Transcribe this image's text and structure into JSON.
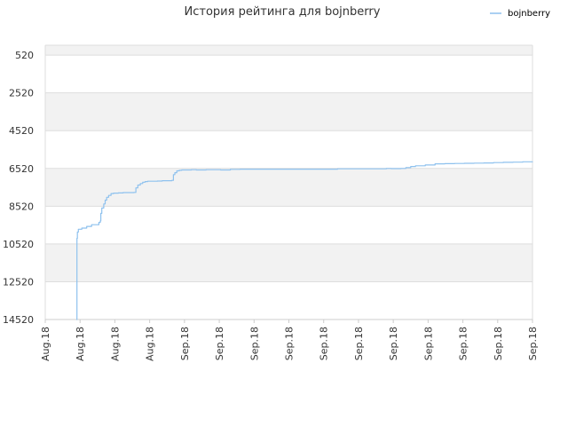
{
  "colors": {
    "line": "#8ec1ee",
    "band": "#f2f2f2",
    "grid": "#dddddd",
    "axis": "#cccccc",
    "text": "#333333"
  },
  "chart_data": {
    "type": "line",
    "title": "История рейтинга для bojnberry",
    "xlabel": "",
    "ylabel": "",
    "y_inverted": true,
    "ylim": [
      14520,
      0
    ],
    "yticks": [
      520,
      2520,
      4520,
      6520,
      8520,
      10520,
      12520,
      14520
    ],
    "xtick_labels": [
      "Aug.18",
      "Aug.18",
      "Aug.18",
      "Aug.18",
      "Sep.18",
      "Sep.18",
      "Sep.18",
      "Sep.18",
      "Sep.18",
      "Sep.18",
      "Sep.18",
      "Sep.18",
      "Sep.18",
      "Sep.18",
      "Sep.18"
    ],
    "grid": true,
    "legend_position": "top-right",
    "series": [
      {
        "name": "bojnberry",
        "color": "#8ec1ee",
        "x": [
          0.064,
          0.065,
          0.066,
          0.068,
          0.075,
          0.085,
          0.095,
          0.11,
          0.113,
          0.114,
          0.116,
          0.12,
          0.123,
          0.126,
          0.13,
          0.135,
          0.14,
          0.145,
          0.15,
          0.16,
          0.17,
          0.182,
          0.186,
          0.19,
          0.195,
          0.2,
          0.205,
          0.21,
          0.22,
          0.23,
          0.24,
          0.25,
          0.26,
          0.263,
          0.266,
          0.27,
          0.275,
          0.28,
          0.29,
          0.3,
          0.31,
          0.33,
          0.36,
          0.38,
          0.4,
          0.45,
          0.5,
          0.55,
          0.6,
          0.65,
          0.7,
          0.71,
          0.72,
          0.73,
          0.74,
          0.75,
          0.76,
          0.78,
          0.8,
          0.82,
          0.84,
          0.86,
          0.88,
          0.9,
          0.92,
          0.94,
          0.96,
          0.98,
          1.0
        ],
        "y": [
          14520,
          10220,
          9890,
          9740,
          9680,
          9590,
          9500,
          9380,
          9300,
          8900,
          8620,
          8400,
          8200,
          8050,
          7950,
          7850,
          7830,
          7830,
          7820,
          7800,
          7800,
          7790,
          7550,
          7400,
          7320,
          7250,
          7220,
          7200,
          7200,
          7190,
          7170,
          7170,
          7150,
          6850,
          6750,
          6650,
          6620,
          6600,
          6600,
          6590,
          6600,
          6590,
          6600,
          6570,
          6560,
          6560,
          6560,
          6560,
          6540,
          6540,
          6520,
          6530,
          6530,
          6520,
          6480,
          6420,
          6380,
          6340,
          6280,
          6270,
          6260,
          6250,
          6240,
          6230,
          6210,
          6200,
          6190,
          6170,
          6150
        ]
      }
    ]
  }
}
